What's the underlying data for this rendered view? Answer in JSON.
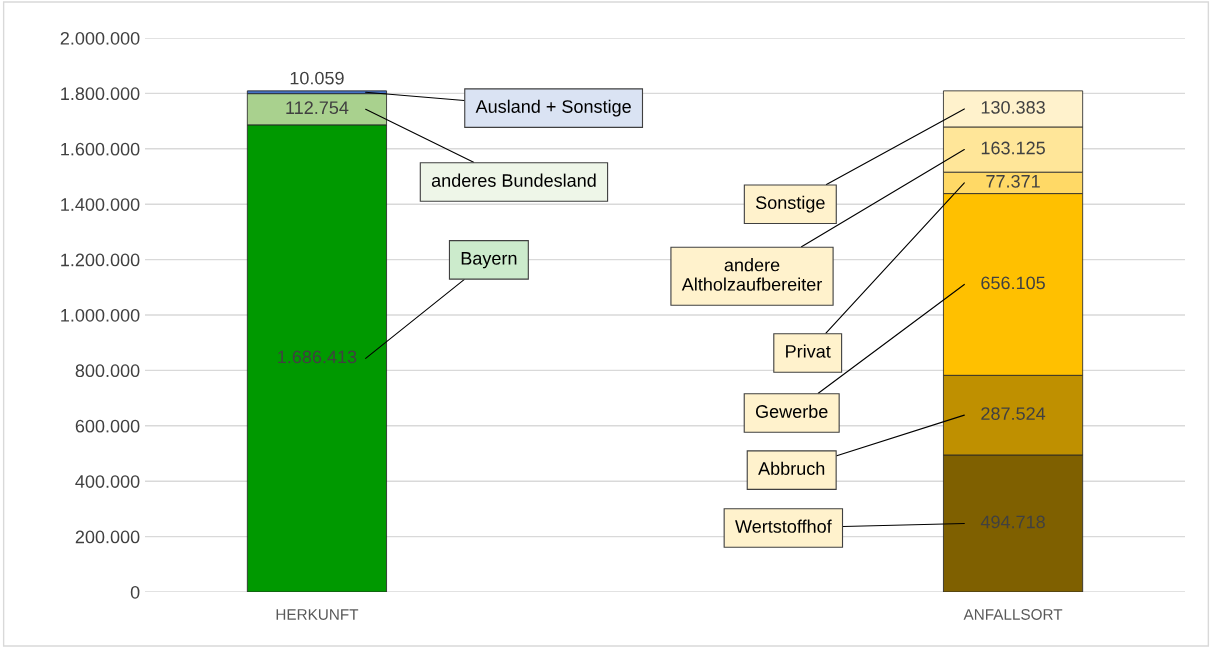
{
  "chart_data": {
    "type": "bar",
    "stacked": true,
    "categories": [
      "HERKUNFT",
      "ANFALLSORT"
    ],
    "ylim": [
      0,
      2000000
    ],
    "yticks": [
      {
        "value": 0,
        "label": "0"
      },
      {
        "value": 200000,
        "label": "200.000"
      },
      {
        "value": 400000,
        "label": "400.000"
      },
      {
        "value": 600000,
        "label": "600.000"
      },
      {
        "value": 800000,
        "label": "800.000"
      },
      {
        "value": 1000000,
        "label": "1.000.000"
      },
      {
        "value": 1200000,
        "label": "1.200.000"
      },
      {
        "value": 1400000,
        "label": "1.400.000"
      },
      {
        "value": 1600000,
        "label": "1.600.000"
      },
      {
        "value": 1800000,
        "label": "1.800.000"
      },
      {
        "value": 2000000,
        "label": "2.000.000"
      }
    ],
    "grid": "y",
    "legend": false,
    "series": [
      {
        "name": "Bayern",
        "color": "#009900",
        "values": [
          1686413,
          null
        ],
        "value_labels": [
          "1.686.413",
          null
        ]
      },
      {
        "name": "anderes Bundesland",
        "color": "#a9d18e",
        "values": [
          112754,
          null
        ],
        "value_labels": [
          "112.754",
          null
        ]
      },
      {
        "name": "Ausland + Sonstige",
        "color": "#4472c4",
        "values": [
          10059,
          null
        ],
        "value_labels": [
          "10.059",
          null
        ]
      },
      {
        "name": "Wertstoffhof",
        "color": "#7f6000",
        "values": [
          null,
          494718
        ],
        "value_labels": [
          null,
          "494.718"
        ]
      },
      {
        "name": "Abbruch",
        "color": "#bf9000",
        "values": [
          null,
          287524
        ],
        "value_labels": [
          null,
          "287.524"
        ]
      },
      {
        "name": "Gewerbe",
        "color": "#ffc000",
        "values": [
          null,
          656105
        ],
        "value_labels": [
          null,
          "656.105"
        ]
      },
      {
        "name": "Privat",
        "color": "#ffd966",
        "values": [
          null,
          77371
        ],
        "value_labels": [
          null,
          "77.371"
        ]
      },
      {
        "name": "andere\nAltholzaufbereiter",
        "color": "#ffe699",
        "values": [
          null,
          163125
        ],
        "value_labels": [
          null,
          "163.125"
        ]
      },
      {
        "name": "Sonstige",
        "color": "#fff2cc",
        "values": [
          null,
          130383
        ],
        "value_labels": [
          null,
          "130.383"
        ]
      }
    ]
  }
}
